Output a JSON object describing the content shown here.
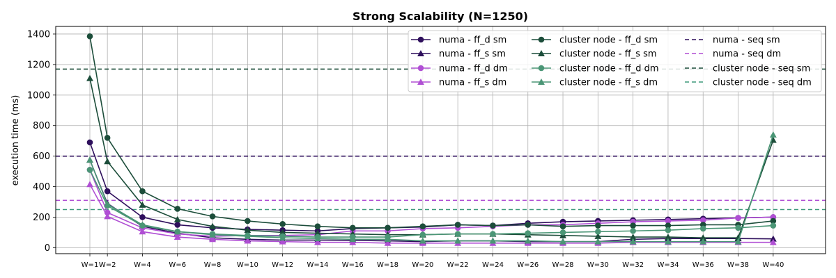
{
  "chart_data": {
    "type": "line",
    "title": "Strong Scalability (N=1250)",
    "xlabel": "",
    "ylabel": "execution time (ms)",
    "ylim": [
      -30,
      1450
    ],
    "yticks": [
      0,
      200,
      400,
      600,
      800,
      1000,
      1200,
      1400
    ],
    "grid": true,
    "legend_position": "top-right",
    "x": [
      1,
      2,
      4,
      6,
      8,
      10,
      12,
      14,
      16,
      18,
      20,
      22,
      24,
      26,
      28,
      30,
      32,
      34,
      36,
      38,
      40
    ],
    "x_tick_labels": [
      "W=1",
      "W=2",
      "W=4",
      "W=6",
      "W=8",
      "W=10",
      "W=12",
      "W=14",
      "W=16",
      "W=18",
      "W=20",
      "W=22",
      "W=24",
      "W=26",
      "W=28",
      "W=30",
      "W=32",
      "W=34",
      "W=36",
      "W=38",
      "W=40"
    ],
    "series": [
      {
        "name": "numa - ff_d sm",
        "color": "#2e0f5c",
        "marker": "circle",
        "values": [
          690,
          370,
          200,
          150,
          130,
          120,
          115,
          110,
          125,
          130,
          135,
          150,
          145,
          160,
          170,
          175,
          180,
          185,
          190,
          195,
          200
        ]
      },
      {
        "name": "numa - ff_s sm",
        "color": "#2e0f5c",
        "marker": "triangle",
        "values": [
          575,
          290,
          140,
          95,
          65,
          55,
          50,
          50,
          48,
          45,
          40,
          45,
          45,
          40,
          40,
          40,
          55,
          60,
          60,
          60,
          58
        ]
      },
      {
        "name": "numa - ff_d dm",
        "color": "#b04fd4",
        "marker": "circle",
        "values": [
          510,
          230,
          130,
          90,
          75,
          80,
          80,
          85,
          110,
          110,
          125,
          130,
          140,
          150,
          150,
          160,
          170,
          175,
          180,
          195,
          200
        ]
      },
      {
        "name": "numa - ff_s dm",
        "color": "#b04fd4",
        "marker": "triangle",
        "values": [
          415,
          205,
          105,
          70,
          55,
          45,
          40,
          35,
          35,
          30,
          30,
          30,
          30,
          30,
          30,
          30,
          35,
          35,
          35,
          35,
          35
        ]
      },
      {
        "name": "cluster node - ff_d sm",
        "color": "#1c4d3a",
        "marker": "circle",
        "values": [
          1385,
          720,
          370,
          255,
          205,
          175,
          155,
          140,
          130,
          130,
          140,
          150,
          145,
          150,
          140,
          145,
          145,
          145,
          150,
          150,
          175
        ]
      },
      {
        "name": "cluster node - ff_s sm",
        "color": "#1c4d3a",
        "marker": "triangle",
        "values": [
          1110,
          565,
          280,
          185,
          140,
          115,
          100,
          95,
          90,
          85,
          85,
          90,
          90,
          85,
          80,
          75,
          70,
          70,
          65,
          65,
          705
        ]
      },
      {
        "name": "cluster node - ff_d dm",
        "color": "#4b9676",
        "marker": "circle",
        "values": [
          510,
          275,
          145,
          105,
          90,
          80,
          75,
          70,
          70,
          70,
          85,
          90,
          90,
          95,
          100,
          105,
          110,
          115,
          125,
          130,
          145
        ]
      },
      {
        "name": "cluster node - ff_s dm",
        "color": "#4b9676",
        "marker": "triangle",
        "values": [
          575,
          285,
          150,
          105,
          85,
          75,
          65,
          60,
          55,
          55,
          45,
          45,
          45,
          45,
          40,
          40,
          40,
          40,
          40,
          40,
          740
        ]
      },
      {
        "name": "numa - seq sm",
        "color": "#2e0f5c",
        "marker": "none",
        "dashed": true,
        "constant": 600
      },
      {
        "name": "numa - seq dm",
        "color": "#b04fd4",
        "marker": "none",
        "dashed": true,
        "constant": 310
      },
      {
        "name": "cluster node - seq sm",
        "color": "#1c4d3a",
        "marker": "none",
        "dashed": true,
        "constant": 1170
      },
      {
        "name": "cluster node - seq dm",
        "color": "#3f9a7b",
        "marker": "none",
        "dashed": true,
        "constant": 250
      }
    ]
  }
}
